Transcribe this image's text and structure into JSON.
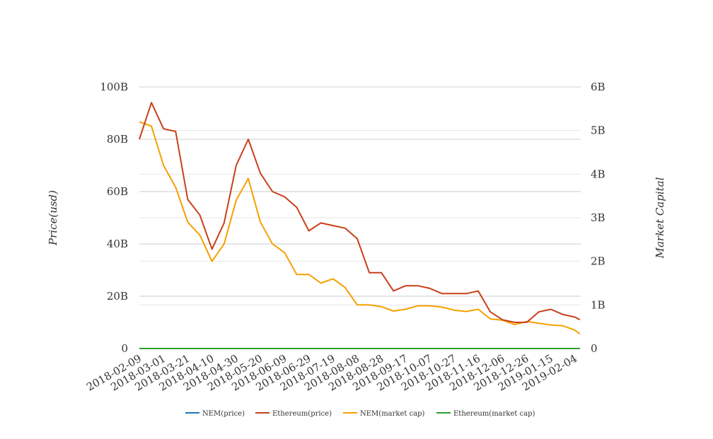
{
  "chart_data": {
    "type": "line",
    "title": "",
    "ylabel_left": "Price(usd)",
    "ylabel_right": "Market Capital",
    "ylim_left": [
      0,
      100000000000
    ],
    "ylim_right": [
      0,
      6000000000
    ],
    "grid": true,
    "legend_position": "bottom",
    "x_tick_labels": [
      "2018-02-09",
      "2018-03-01",
      "2018-03-21",
      "2018-04-10",
      "2018-04-30",
      "2018-05-20",
      "2018-06-09",
      "2018-06-29",
      "2018-07-19",
      "2018-08-08",
      "2018-08-28",
      "2018-09-17",
      "2018-10-07",
      "2018-10-27",
      "2018-11-16",
      "2018-12-06",
      "2018-12-26",
      "2019-01-15",
      "2019-02-04"
    ],
    "y_left_tick_labels": [
      "0",
      "20B",
      "40B",
      "60B",
      "80B",
      "100B"
    ],
    "y_right_tick_labels": [
      "0",
      "1B",
      "2B",
      "3B",
      "4B",
      "5B",
      "6B"
    ],
    "x": [
      "2018-02-09",
      "2018-02-19",
      "2018-03-01",
      "2018-03-11",
      "2018-03-21",
      "2018-03-31",
      "2018-04-10",
      "2018-04-20",
      "2018-04-30",
      "2018-05-10",
      "2018-05-20",
      "2018-05-30",
      "2018-06-09",
      "2018-06-19",
      "2018-06-29",
      "2018-07-09",
      "2018-07-19",
      "2018-07-29",
      "2018-08-08",
      "2018-08-18",
      "2018-08-28",
      "2018-09-07",
      "2018-09-17",
      "2018-09-27",
      "2018-10-07",
      "2018-10-17",
      "2018-10-27",
      "2018-11-06",
      "2018-11-16",
      "2018-11-26",
      "2018-12-06",
      "2018-12-16",
      "2018-12-26",
      "2019-01-05",
      "2019-01-15",
      "2019-01-25",
      "2019-02-04",
      "2019-02-08"
    ],
    "series": [
      {
        "name": "NEM(price)",
        "color": "#1f77b4",
        "axis": "left",
        "values": [
          0,
          0,
          0,
          0,
          0,
          0,
          0,
          0,
          0,
          0,
          0,
          0,
          0,
          0,
          0,
          0,
          0,
          0,
          0,
          0,
          0,
          0,
          0,
          0,
          0,
          0,
          0,
          0,
          0,
          0,
          0,
          0,
          0,
          0,
          0,
          0,
          0,
          0
        ]
      },
      {
        "name": "Ethereum(price)",
        "color": "#c8401a",
        "axis": "left",
        "values": [
          80000000000,
          94000000000,
          84000000000,
          83000000000,
          57000000000,
          51000000000,
          38000000000,
          48000000000,
          70000000000,
          80000000000,
          67000000000,
          60000000000,
          58000000000,
          54000000000,
          45000000000,
          48000000000,
          47000000000,
          46000000000,
          42000000000,
          29000000000,
          29000000000,
          22000000000,
          24000000000,
          24000000000,
          23000000000,
          21000000000,
          21000000000,
          21000000000,
          22000000000,
          14000000000,
          11000000000,
          10000000000,
          10000000000,
          14000000000,
          15000000000,
          13000000000,
          12000000000,
          11000000000
        ]
      },
      {
        "name": "NEM(market cap)",
        "color": "#f5a000",
        "axis": "right",
        "values": [
          5200000000,
          5100000000,
          4200000000,
          3700000000,
          2900000000,
          2600000000,
          2000000000,
          2400000000,
          3400000000,
          3900000000,
          2900000000,
          2400000000,
          2200000000,
          1700000000,
          1700000000,
          1500000000,
          1600000000,
          1400000000,
          1000000000,
          1000000000,
          960000000,
          860000000,
          900000000,
          980000000,
          980000000,
          950000000,
          880000000,
          850000000,
          900000000,
          680000000,
          650000000,
          550000000,
          620000000,
          580000000,
          540000000,
          520000000,
          420000000,
          330000000
        ]
      },
      {
        "name": "Ethereum(market cap)",
        "color": "#2ca02c",
        "axis": "right",
        "values": [
          0,
          0,
          0,
          0,
          0,
          0,
          0,
          0,
          0,
          0,
          0,
          0,
          0,
          0,
          0,
          0,
          0,
          0,
          0,
          0,
          0,
          0,
          0,
          0,
          0,
          0,
          0,
          0,
          0,
          0,
          0,
          0,
          0,
          0,
          0,
          0,
          0,
          0
        ]
      }
    ]
  }
}
